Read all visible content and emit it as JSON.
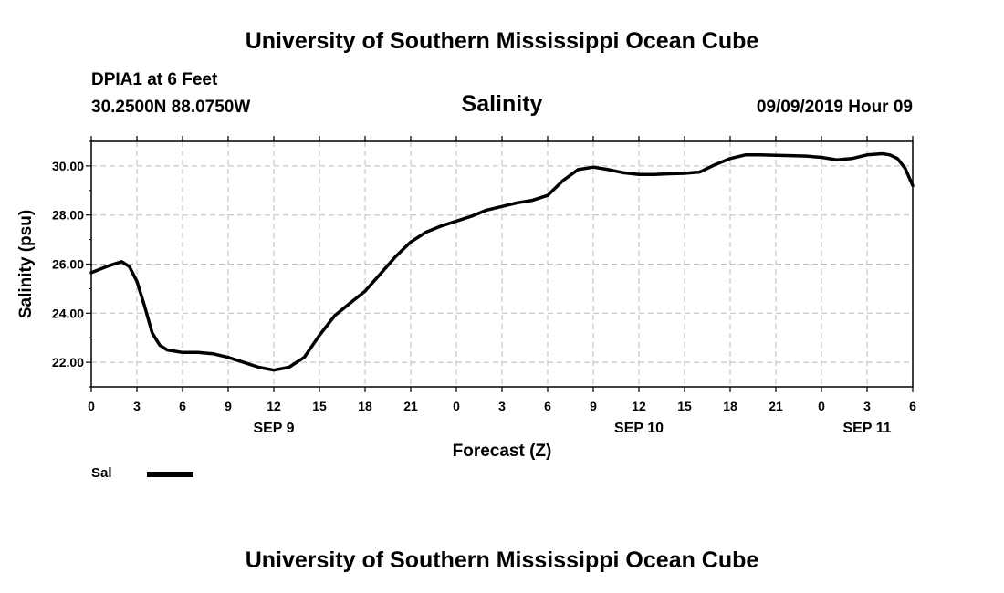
{
  "page": {
    "top_title": "University of Southern Mississippi Ocean Cube",
    "bottom_title": "University of Southern Mississippi Ocean Cube",
    "station": "DPIA1 at 6 Feet",
    "coords": "30.2500N 88.0750W",
    "date": "09/09/2019 Hour 09"
  },
  "chart_data": {
    "type": "line",
    "title": "Salinity",
    "xlabel": "Forecast (Z)",
    "ylabel": "Salinity (psu)",
    "xlim": [
      0,
      54
    ],
    "ylim": [
      21,
      31
    ],
    "grid": true,
    "legend_position": "bottom-left",
    "x_ticks": [
      0,
      3,
      6,
      9,
      12,
      15,
      18,
      21,
      24,
      27,
      30,
      33,
      36,
      39,
      42,
      45,
      48,
      51,
      54
    ],
    "x_tick_labels": [
      "0",
      "3",
      "6",
      "9",
      "12",
      "15",
      "18",
      "21",
      "0",
      "3",
      "6",
      "9",
      "12",
      "15",
      "18",
      "21",
      "0",
      "3",
      "6"
    ],
    "y_ticks": [
      22,
      24,
      26,
      28,
      30
    ],
    "y_tick_labels": [
      "22.00",
      "24.00",
      "26.00",
      "28.00",
      "30.00"
    ],
    "day_labels": [
      {
        "x": 12,
        "label": "SEP 9"
      },
      {
        "x": 36,
        "label": "SEP 10"
      },
      {
        "x": 51,
        "label": "SEP 11"
      }
    ],
    "series": [
      {
        "name": "Sal",
        "color": "#000000",
        "x": [
          0,
          1,
          2,
          2.5,
          3,
          3.5,
          4,
          4.5,
          5,
          6,
          7,
          8,
          9,
          10,
          11,
          12,
          13,
          14,
          15,
          16,
          17,
          18,
          19,
          20,
          21,
          22,
          23,
          24,
          25,
          26,
          27,
          28,
          29,
          30,
          31,
          32,
          33,
          34,
          35,
          36,
          37,
          38,
          39,
          40,
          41,
          42,
          43,
          44,
          45,
          46,
          47,
          48,
          49,
          50,
          51,
          52,
          52.5,
          53,
          53.5,
          54
        ],
        "y": [
          25.65,
          25.9,
          26.1,
          25.9,
          25.3,
          24.3,
          23.2,
          22.7,
          22.5,
          22.4,
          22.4,
          22.35,
          22.2,
          22.0,
          21.8,
          21.68,
          21.8,
          22.2,
          23.1,
          23.9,
          24.4,
          24.9,
          25.6,
          26.3,
          26.9,
          27.3,
          27.55,
          27.75,
          27.95,
          28.2,
          28.35,
          28.5,
          28.6,
          28.8,
          29.4,
          29.85,
          29.95,
          29.85,
          29.72,
          29.65,
          29.65,
          29.68,
          29.7,
          29.75,
          30.05,
          30.3,
          30.45,
          30.45,
          30.43,
          30.42,
          30.4,
          30.35,
          30.25,
          30.3,
          30.45,
          30.5,
          30.45,
          30.3,
          29.9,
          29.2
        ]
      }
    ]
  }
}
